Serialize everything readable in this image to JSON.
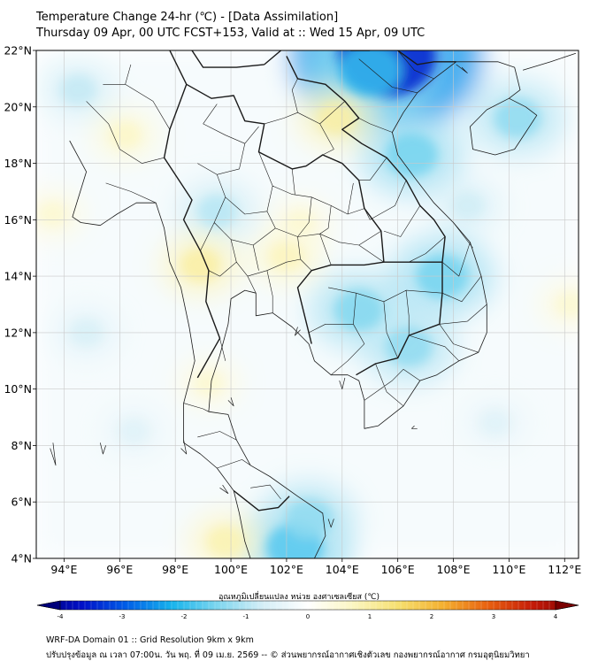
{
  "header": {
    "title_line1": "Temperature Change 24-hr (℃) - [Data Assimilation]",
    "title_line2": "Thursday 09 Apr, 00 UTC FCST+153, Valid at :: Wed 15 Apr, 09 UTC"
  },
  "map": {
    "lat_range": [
      4,
      22
    ],
    "lon_range": [
      93,
      112.5
    ],
    "lat_ticks": [
      "22°N",
      "20°N",
      "18°N",
      "16°N",
      "14°N",
      "12°N",
      "10°N",
      "8°N",
      "6°N",
      "4°N"
    ],
    "lat_values": [
      22,
      20,
      18,
      16,
      14,
      12,
      10,
      8,
      6,
      4
    ],
    "lon_ticks": [
      "94°E",
      "96°E",
      "98°E",
      "100°E",
      "102°E",
      "104°E",
      "106°E",
      "108°E",
      "110°E",
      "112°E"
    ],
    "lon_values": [
      94,
      96,
      98,
      100,
      102,
      104,
      106,
      108,
      110,
      112
    ],
    "grid": true
  },
  "colorbar": {
    "title": "อุณหภูมิเปลี่ยนแปลง หน่วย องศาเซลเซียส (℃)",
    "min": -4,
    "max": 4,
    "tick_labels": [
      "-4",
      "-3",
      "-2",
      "-1",
      "0",
      "1",
      "2",
      "3",
      "4"
    ],
    "tick_values": [
      -4,
      -3,
      -2,
      -1,
      0,
      1,
      2,
      3,
      4
    ],
    "colors": [
      "#00007a",
      "#0010c8",
      "#0060e8",
      "#18b4ec",
      "#7ed6ef",
      "#d4eef6",
      "#ffffff",
      "#fbf6c2",
      "#f6e070",
      "#f4b030",
      "#e86010",
      "#c41a08",
      "#7a0000"
    ]
  },
  "footer": {
    "line1": "WRF-DA Domain 01 :: Grid Resolution 9km x 9km",
    "line2": "ปรับปรุงข้อมูล ณ เวลา 07:00น. วัน พฤ. ที่ 09 เม.ย. 2569 -- © ส่วนพยากรณ์อากาศเชิงตัวเลข กองพยากรณ์อากาศ กรมอุตุนิยมวิทยา"
  },
  "field_features": [
    {
      "kind": "cool",
      "lon": 105.6,
      "lat": 21.8,
      "value": -3.2
    },
    {
      "kind": "cool",
      "lon": 105.0,
      "lat": 21.3,
      "value": -1.8
    },
    {
      "kind": "cool",
      "lon": 106.5,
      "lat": 18.3,
      "value": -1.4
    },
    {
      "kind": "cool",
      "lon": 110.3,
      "lat": 19.6,
      "value": -1.2
    },
    {
      "kind": "cool",
      "lon": 107.6,
      "lat": 14.0,
      "value": -1.4
    },
    {
      "kind": "cool",
      "lon": 104.6,
      "lat": 12.8,
      "value": -1.3
    },
    {
      "kind": "cool",
      "lon": 106.4,
      "lat": 11.5,
      "value": -1.2
    },
    {
      "kind": "cool",
      "lon": 102.3,
      "lat": 4.4,
      "value": -1.6
    },
    {
      "kind": "cool",
      "lon": 102.8,
      "lat": 5.4,
      "value": -1.2
    },
    {
      "kind": "cool",
      "lon": 99.5,
      "lat": 16.3,
      "value": -0.9
    },
    {
      "kind": "cool",
      "lon": 94.5,
      "lat": 20.6,
      "value": -0.8
    },
    {
      "kind": "cool",
      "lon": 94.8,
      "lat": 12.0,
      "value": -0.6
    },
    {
      "kind": "cool",
      "lon": 108.5,
      "lat": 16.5,
      "value": -0.7
    },
    {
      "kind": "cool",
      "lon": 96.5,
      "lat": 8.5,
      "value": -0.5
    },
    {
      "kind": "cool",
      "lon": 109.5,
      "lat": 8.8,
      "value": -0.5
    },
    {
      "kind": "warm",
      "lon": 103.8,
      "lat": 19.6,
      "value": 0.9
    },
    {
      "kind": "warm",
      "lon": 98.9,
      "lat": 14.4,
      "value": 0.9
    },
    {
      "kind": "warm",
      "lon": 102.0,
      "lat": 14.7,
      "value": 0.7
    },
    {
      "kind": "warm",
      "lon": 96.2,
      "lat": 19.0,
      "value": 0.6
    },
    {
      "kind": "warm",
      "lon": 99.8,
      "lat": 4.6,
      "value": 0.8
    },
    {
      "kind": "warm",
      "lon": 99.2,
      "lat": 10.2,
      "value": 0.5
    },
    {
      "kind": "warm",
      "lon": 93.6,
      "lat": 16.2,
      "value": 0.5
    },
    {
      "kind": "warm",
      "lon": 102.5,
      "lat": 15.9,
      "value": 0.5
    },
    {
      "kind": "warm",
      "lon": 112.2,
      "lat": 13.0,
      "value": 0.5
    }
  ],
  "coastline": [
    [
      94.2,
      18.8
    ],
    [
      94.8,
      17.7
    ],
    [
      94.3,
      16.1
    ],
    [
      94.6,
      15.9
    ],
    [
      95.3,
      15.8
    ],
    [
      95.9,
      16.2
    ],
    [
      96.6,
      16.6
    ],
    [
      97.3,
      16.6
    ],
    [
      97.6,
      15.7
    ],
    [
      97.8,
      14.5
    ],
    [
      98.2,
      13.6
    ],
    [
      98.5,
      12.2
    ],
    [
      98.7,
      11.0
    ],
    [
      98.3,
      9.5
    ],
    [
      98.3,
      8.1
    ],
    [
      98.9,
      7.7
    ],
    [
      99.5,
      7.2
    ],
    [
      100.1,
      6.4
    ],
    [
      100.3,
      5.6
    ],
    [
      100.5,
      4.6
    ],
    [
      100.7,
      4.0
    ],
    null,
    [
      103.0,
      4.0
    ],
    [
      103.4,
      4.8
    ],
    [
      103.3,
      5.6
    ],
    [
      102.4,
      6.2
    ],
    [
      101.4,
      6.9
    ],
    [
      100.7,
      7.3
    ],
    [
      100.2,
      8.2
    ],
    [
      99.9,
      9.1
    ],
    [
      99.2,
      9.2
    ],
    [
      99.3,
      10.3
    ],
    [
      99.6,
      11.2
    ],
    [
      99.9,
      12.3
    ],
    [
      100.0,
      13.2
    ],
    [
      100.5,
      13.5
    ],
    [
      100.9,
      13.4
    ],
    [
      100.9,
      12.6
    ],
    [
      101.5,
      12.7
    ],
    [
      102.2,
      12.2
    ],
    [
      102.8,
      11.6
    ],
    [
      103.0,
      11.0
    ],
    [
      103.6,
      10.5
    ],
    [
      104.2,
      10.5
    ],
    [
      104.6,
      10.3
    ],
    [
      104.8,
      9.6
    ],
    [
      104.8,
      8.6
    ],
    [
      105.3,
      8.7
    ],
    [
      106.2,
      9.4
    ],
    [
      106.8,
      10.3
    ],
    [
      107.4,
      10.5
    ],
    [
      108.2,
      11.0
    ],
    [
      108.9,
      11.3
    ],
    [
      109.2,
      12.0
    ],
    [
      109.2,
      13.0
    ],
    [
      109.0,
      14.0
    ],
    [
      108.6,
      15.2
    ],
    [
      108.0,
      15.9
    ],
    [
      107.3,
      16.6
    ],
    [
      106.6,
      17.5
    ],
    [
      106.0,
      18.3
    ],
    [
      105.8,
      19.1
    ],
    [
      106.2,
      19.8
    ],
    [
      106.7,
      20.5
    ],
    [
      107.3,
      21.0
    ],
    [
      108.1,
      21.6
    ],
    [
      108.5,
      21.6
    ],
    [
      109.6,
      21.6
    ],
    [
      110.2,
      21.4
    ],
    [
      110.4,
      20.6
    ],
    [
      110.0,
      20.3
    ],
    null,
    [
      110.0,
      20.3
    ],
    [
      110.6,
      20.0
    ],
    [
      111.0,
      19.7
    ],
    [
      110.6,
      19.1
    ],
    [
      110.2,
      18.5
    ],
    [
      109.5,
      18.3
    ],
    [
      108.7,
      18.5
    ],
    [
      108.6,
      19.3
    ],
    [
      109.2,
      19.9
    ],
    [
      110.0,
      20.3
    ],
    null,
    [
      110.5,
      21.3
    ],
    [
      111.5,
      21.6
    ],
    [
      112.4,
      21.9
    ]
  ],
  "borders": [
    [
      97.8,
      22.0
    ],
    [
      98.4,
      20.8
    ],
    [
      99.3,
      20.3
    ],
    [
      100.1,
      20.4
    ],
    [
      100.5,
      19.5
    ],
    [
      101.2,
      19.4
    ],
    [
      101.0,
      18.4
    ],
    [
      102.2,
      17.8
    ],
    [
      102.7,
      17.9
    ],
    [
      103.3,
      18.3
    ],
    [
      104.0,
      18.0
    ],
    [
      104.6,
      17.4
    ],
    [
      104.8,
      16.4
    ],
    [
      105.4,
      15.6
    ],
    [
      105.5,
      14.5
    ],
    [
      104.8,
      14.4
    ],
    [
      103.6,
      14.4
    ],
    [
      102.9,
      14.2
    ],
    [
      102.4,
      13.6
    ],
    [
      102.7,
      12.4
    ],
    [
      102.8,
      12.0
    ],
    [
      102.9,
      11.6
    ],
    null,
    [
      101.2,
      21.5
    ],
    [
      101.8,
      22.0
    ],
    null,
    [
      102.0,
      21.8
    ],
    [
      102.4,
      21.0
    ],
    [
      103.4,
      20.8
    ],
    [
      104.1,
      20.2
    ],
    [
      104.6,
      19.6
    ],
    [
      104.0,
      19.2
    ],
    [
      104.7,
      18.7
    ],
    [
      105.6,
      18.2
    ],
    [
      106.3,
      17.4
    ],
    [
      106.8,
      16.5
    ],
    [
      107.3,
      16.0
    ],
    [
      107.7,
      15.4
    ],
    [
      107.6,
      14.5
    ],
    [
      106.4,
      14.5
    ],
    [
      105.5,
      14.5
    ],
    null,
    [
      107.6,
      14.5
    ],
    [
      107.6,
      13.4
    ],
    [
      107.5,
      12.3
    ],
    [
      106.4,
      11.9
    ],
    [
      106.0,
      11.1
    ],
    [
      105.2,
      10.9
    ],
    [
      104.5,
      10.5
    ],
    null,
    [
      98.6,
      22.0
    ],
    [
      99.0,
      21.4
    ],
    [
      100.2,
      21.4
    ],
    [
      101.2,
      21.5
    ],
    null,
    [
      98.4,
      20.8
    ],
    [
      97.8,
      19.2
    ],
    [
      97.6,
      18.2
    ],
    [
      98.6,
      16.7
    ],
    [
      98.3,
      16.0
    ],
    [
      98.9,
      14.9
    ],
    [
      99.2,
      14.2
    ],
    [
      99.1,
      13.1
    ],
    [
      99.6,
      11.8
    ],
    [
      98.8,
      10.4
    ],
    null,
    [
      100.1,
      6.4
    ],
    [
      101.0,
      5.7
    ],
    [
      101.7,
      5.8
    ],
    [
      102.1,
      6.2
    ],
    null,
    [
      106.0,
      22.0
    ],
    [
      106.7,
      21.5
    ],
    [
      107.3,
      21.6
    ],
    [
      108.1,
      21.6
    ],
    null,
    [
      104.3,
      22.0
    ],
    [
      105.0,
      22.0
    ]
  ],
  "provinces": [
    [
      99.0,
      19.4
    ],
    [
      99.8,
      19.0
    ],
    [
      100.5,
      18.7
    ],
    [
      100.3,
      17.8
    ],
    [
      99.5,
      17.6
    ],
    [
      98.8,
      18.0
    ],
    null,
    [
      99.5,
      17.6
    ],
    [
      99.8,
      16.8
    ],
    [
      100.5,
      16.2
    ],
    [
      101.3,
      16.3
    ],
    [
      101.5,
      17.2
    ],
    [
      101.0,
      18.4
    ],
    null,
    [
      99.8,
      16.8
    ],
    [
      99.4,
      15.9
    ],
    [
      100.0,
      15.3
    ],
    [
      100.8,
      15.1
    ],
    [
      101.6,
      15.7
    ],
    [
      101.3,
      16.3
    ],
    null,
    [
      101.5,
      17.2
    ],
    [
      102.2,
      16.9
    ],
    [
      102.9,
      16.8
    ],
    [
      103.6,
      16.5
    ],
    [
      104.2,
      16.2
    ],
    [
      104.8,
      16.4
    ],
    null,
    [
      101.6,
      15.7
    ],
    [
      102.4,
      15.4
    ],
    [
      103.2,
      15.5
    ],
    [
      103.9,
      15.2
    ],
    [
      104.6,
      15.1
    ],
    [
      105.4,
      15.6
    ],
    null,
    [
      102.9,
      16.8
    ],
    [
      102.8,
      15.9
    ],
    [
      102.4,
      15.4
    ],
    [
      102.5,
      14.6
    ],
    [
      102.9,
      14.2
    ],
    null,
    [
      103.6,
      16.5
    ],
    [
      103.5,
      15.7
    ],
    [
      103.2,
      15.5
    ],
    [
      103.6,
      14.4
    ],
    null,
    [
      100.0,
      15.3
    ],
    [
      100.2,
      14.5
    ],
    [
      100.6,
      14.0
    ],
    [
      101.3,
      14.2
    ],
    [
      102.0,
      14.5
    ],
    [
      102.5,
      14.6
    ],
    null,
    [
      100.6,
      14.0
    ],
    [
      100.9,
      13.4
    ],
    null,
    [
      101.3,
      14.2
    ],
    [
      101.5,
      13.3
    ],
    [
      101.5,
      12.7
    ],
    null,
    [
      99.4,
      15.9
    ],
    [
      98.9,
      14.9
    ],
    null,
    [
      100.2,
      14.5
    ],
    [
      99.6,
      14.0
    ],
    [
      99.2,
      14.2
    ],
    null,
    [
      99.6,
      11.8
    ],
    [
      99.8,
      11.0
    ],
    null,
    [
      98.3,
      9.5
    ],
    [
      99.0,
      9.3
    ],
    [
      99.2,
      9.2
    ],
    null,
    [
      98.8,
      8.3
    ],
    [
      99.6,
      8.5
    ],
    [
      100.2,
      8.2
    ],
    null,
    [
      99.5,
      7.2
    ],
    [
      100.4,
      7.5
    ],
    [
      100.7,
      7.3
    ],
    null,
    [
      100.7,
      6.5
    ],
    [
      101.4,
      6.6
    ],
    [
      101.8,
      6.1
    ],
    null,
    [
      100.5,
      18.7
    ],
    [
      101.0,
      19.3
    ],
    null,
    [
      99.0,
      19.4
    ],
    [
      99.5,
      20.1
    ],
    null,
    [
      102.2,
      17.8
    ],
    [
      102.3,
      16.9
    ],
    null,
    [
      104.2,
      16.2
    ],
    [
      104.4,
      17.3
    ],
    null,
    [
      105.5,
      14.5
    ],
    [
      104.6,
      15.1
    ],
    null,
    [
      100.8,
      15.1
    ],
    [
      101.0,
      14.2
    ],
    null,
    [
      103.5,
      13.6
    ],
    [
      104.5,
      13.4
    ],
    [
      105.5,
      13.1
    ],
    [
      106.3,
      13.5
    ],
    [
      107.6,
      13.4
    ],
    null,
    [
      104.5,
      13.4
    ],
    [
      104.4,
      12.3
    ],
    [
      104.8,
      11.6
    ],
    [
      104.2,
      11.0
    ],
    [
      103.6,
      10.5
    ],
    null,
    [
      105.5,
      13.1
    ],
    [
      105.6,
      12.0
    ],
    [
      106.0,
      11.1
    ],
    null,
    [
      102.8,
      12.0
    ],
    [
      103.4,
      12.3
    ],
    [
      104.4,
      12.3
    ],
    null,
    [
      106.3,
      13.5
    ],
    [
      106.4,
      12.6
    ],
    [
      106.4,
      11.9
    ],
    null,
    [
      102.4,
      19.8
    ],
    [
      103.2,
      19.4
    ],
    [
      104.1,
      20.2
    ],
    null,
    [
      101.2,
      19.4
    ],
    [
      101.9,
      19.6
    ],
    [
      102.4,
      19.8
    ],
    [
      102.2,
      20.6
    ],
    [
      102.4,
      21.0
    ],
    null,
    [
      103.2,
      19.4
    ],
    [
      103.7,
      18.5
    ],
    [
      103.3,
      18.3
    ],
    null,
    [
      105.6,
      18.2
    ],
    [
      105.0,
      17.4
    ],
    [
      104.6,
      17.4
    ],
    null,
    [
      106.3,
      17.4
    ],
    [
      105.9,
      16.5
    ],
    [
      105.0,
      16.0
    ],
    [
      104.8,
      16.4
    ],
    null,
    [
      106.8,
      16.5
    ],
    [
      106.1,
      15.4
    ],
    [
      105.5,
      15.6
    ],
    null,
    [
      107.7,
      15.4
    ],
    [
      107.0,
      14.8
    ],
    [
      106.4,
      14.5
    ],
    null,
    [
      96.2,
      20.8
    ],
    [
      97.2,
      20.2
    ],
    [
      97.8,
      19.2
    ],
    null,
    [
      96.0,
      18.5
    ],
    [
      96.8,
      18.0
    ],
    [
      97.6,
      18.2
    ],
    null,
    [
      95.5,
      17.3
    ],
    [
      96.4,
      17.0
    ],
    [
      97.3,
      16.6
    ],
    null,
    [
      94.8,
      20.2
    ],
    [
      95.6,
      19.4
    ],
    [
      96.0,
      18.5
    ],
    null,
    [
      96.4,
      21.5
    ],
    [
      96.2,
      20.8
    ],
    [
      95.4,
      20.8
    ],
    null,
    [
      108.0,
      15.9
    ],
    [
      108.7,
      15.0
    ],
    null,
    [
      108.6,
      15.2
    ],
    [
      108.2,
      14.0
    ],
    [
      107.6,
      14.5
    ],
    null,
    [
      109.0,
      14.0
    ],
    [
      108.3,
      13.1
    ],
    [
      107.6,
      13.4
    ],
    null,
    [
      109.2,
      13.0
    ],
    [
      108.5,
      12.4
    ],
    [
      107.5,
      12.3
    ],
    null,
    [
      108.9,
      11.3
    ],
    [
      108.0,
      11.6
    ],
    [
      107.5,
      12.3
    ],
    null,
    [
      108.2,
      11.0
    ],
    [
      107.7,
      11.5
    ],
    [
      106.4,
      11.9
    ],
    null,
    [
      106.8,
      10.3
    ],
    [
      106.2,
      10.7
    ],
    [
      105.8,
      10.3
    ],
    [
      104.8,
      9.6
    ],
    null,
    [
      106.2,
      9.4
    ],
    [
      105.6,
      9.9
    ],
    [
      105.2,
      10.9
    ],
    null,
    [
      105.8,
      19.1
    ],
    [
      105.0,
      19.4
    ],
    [
      104.6,
      19.6
    ],
    null,
    [
      106.7,
      20.5
    ],
    [
      105.8,
      20.7
    ],
    [
      105.2,
      21.2
    ],
    [
      104.6,
      21.7
    ],
    null,
    [
      107.3,
      21.0
    ],
    [
      106.6,
      21.3
    ],
    [
      106.0,
      22.0
    ]
  ],
  "islands": [
    [
      98.2,
      7.9
    ],
    [
      98.4,
      7.7
    ],
    [
      98.3,
      8.2
    ],
    null,
    [
      99.9,
      9.6
    ],
    [
      100.1,
      9.4
    ],
    [
      100.0,
      9.7
    ],
    null,
    [
      102.5,
      12.1
    ],
    [
      102.3,
      11.9
    ],
    [
      102.4,
      12.2
    ],
    null,
    [
      103.9,
      10.3
    ],
    [
      104.0,
      10.0
    ],
    [
      104.1,
      10.4
    ],
    null,
    [
      106.6,
      8.7
    ],
    [
      106.5,
      8.6
    ],
    [
      106.7,
      8.6
    ],
    null,
    [
      92.8,
      12.3
    ],
    [
      93.0,
      13.2
    ],
    [
      92.9,
      12.0
    ],
    null,
    [
      93.5,
      7.9
    ],
    [
      93.7,
      7.3
    ],
    [
      93.6,
      8.1
    ],
    null,
    [
      95.3,
      8.1
    ],
    [
      95.4,
      7.7
    ],
    [
      95.5,
      8.0
    ],
    null,
    [
      99.6,
      6.5
    ],
    [
      99.9,
      6.3
    ],
    [
      99.7,
      6.6
    ],
    null,
    [
      103.5,
      5.4
    ],
    [
      103.6,
      5.1
    ],
    [
      103.7,
      5.4
    ],
    null,
    [
      108.1,
      21.5
    ],
    [
      108.5,
      21.2
    ],
    [
      108.3,
      21.4
    ]
  ]
}
